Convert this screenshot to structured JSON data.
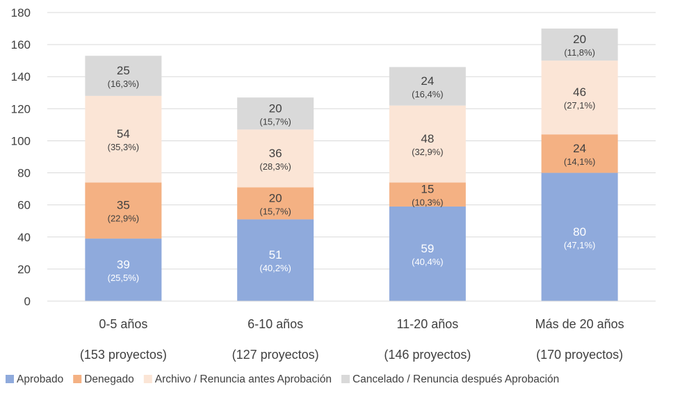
{
  "chart_data": {
    "type": "bar",
    "stacked": true,
    "categories": [
      "0-5 años",
      "6-10 años",
      "11-20 años",
      "Más de 20 años"
    ],
    "category_sublabels": [
      "(153 proyectos)",
      "(127 proyectos)",
      "(146 proyectos)",
      "(170 proyectos)"
    ],
    "series": [
      {
        "name": "Aprobado",
        "color": "#8faadc",
        "label_color": "#ffffff",
        "values": [
          39,
          51,
          59,
          80
        ],
        "percent_labels": [
          "(25,5%)",
          "(40,2%)",
          "(40,4%)",
          "(47,1%)"
        ]
      },
      {
        "name": "Denegado",
        "color": "#f4b183",
        "label_color": "#404040",
        "values": [
          35,
          20,
          15,
          24
        ],
        "percent_labels": [
          "(22,9%)",
          "(15,7%)",
          "(10,3%)",
          "(14,1%)"
        ]
      },
      {
        "name": "Archivo / Renuncia antes Aprobación",
        "color": "#fbe5d6",
        "label_color": "#404040",
        "values": [
          54,
          36,
          48,
          46
        ],
        "percent_labels": [
          "(35,3%)",
          "(28,3%)",
          "(32,9%)",
          "(27,1%)"
        ]
      },
      {
        "name": "Cancelado / Renuncia después Aprobación",
        "color": "#d9d9d9",
        "label_color": "#404040",
        "values": [
          25,
          20,
          24,
          20
        ],
        "percent_labels": [
          "(16,3%)",
          "(15,7%)",
          "(16,4%)",
          "(11,8%)"
        ]
      }
    ],
    "ylim": [
      0,
      180
    ],
    "yticks": [
      0,
      20,
      40,
      60,
      80,
      100,
      120,
      140,
      160,
      180
    ],
    "grid": true,
    "legend": "bottom",
    "title": "",
    "xlabel": "",
    "ylabel": ""
  }
}
